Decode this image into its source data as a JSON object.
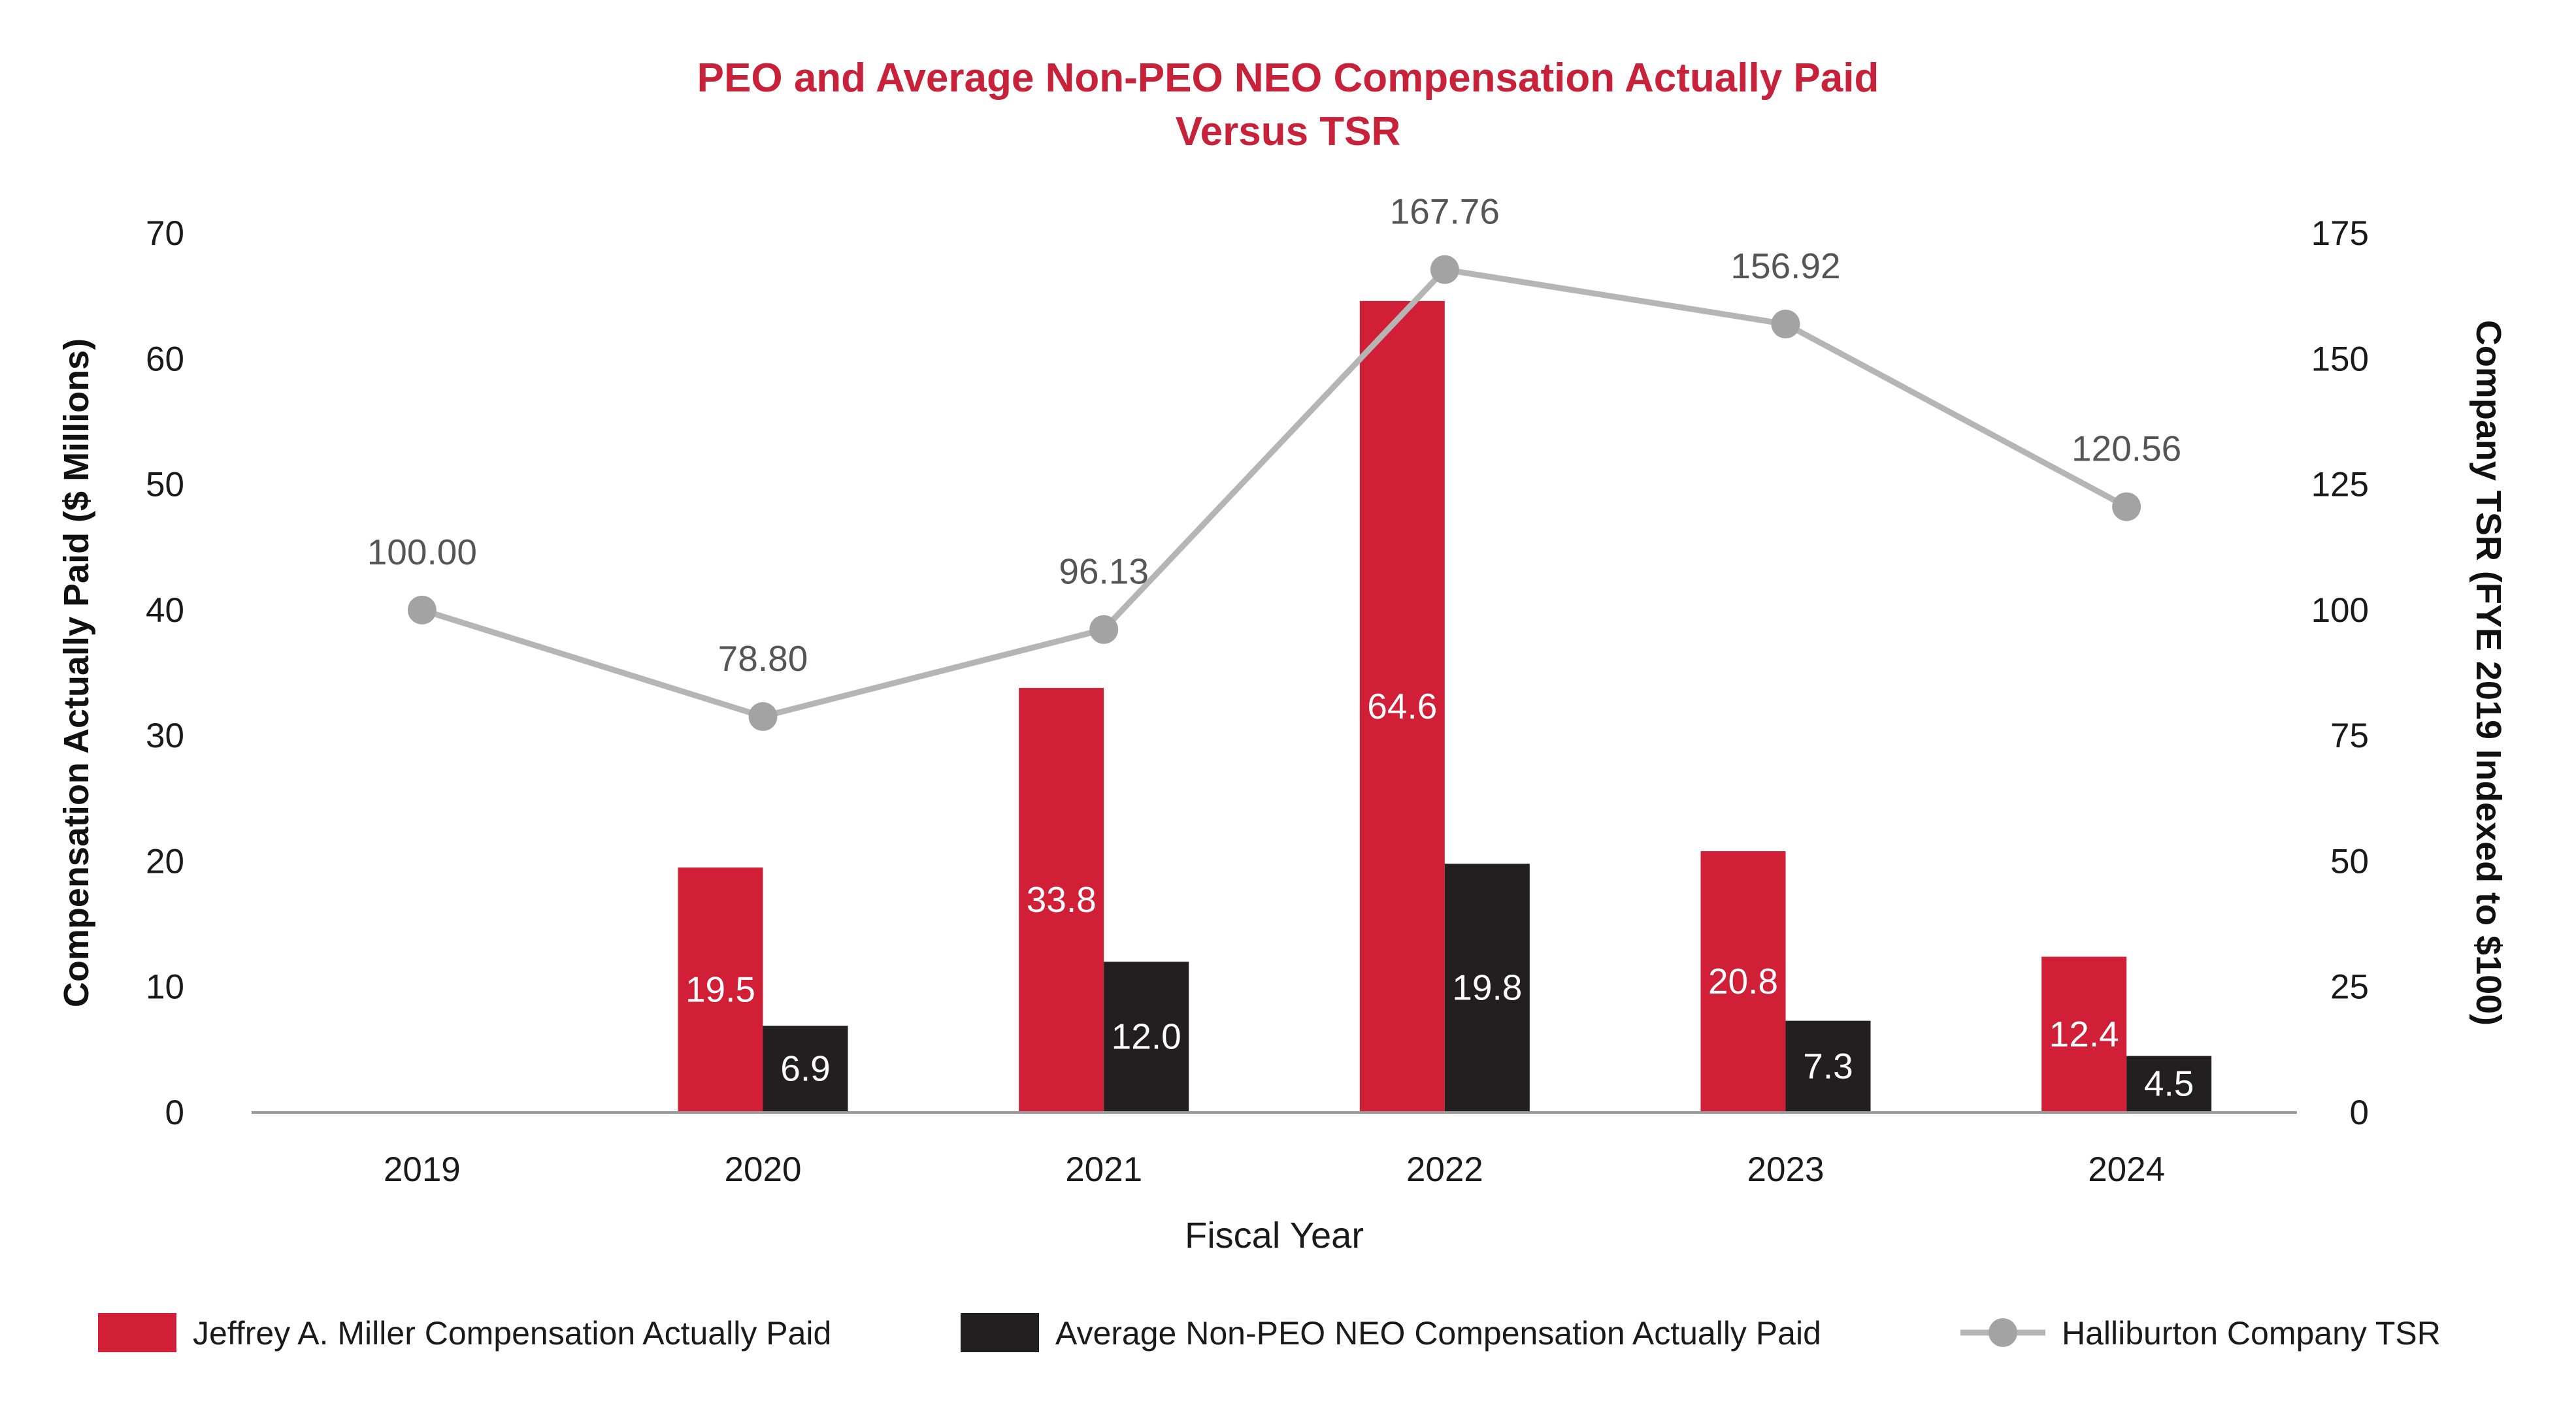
{
  "colors": {
    "title": "#c8213a",
    "peo_bar": "#d01f37",
    "neo_bar": "#231f20",
    "tsr_line": "#b5b5b5",
    "tsr_marker": "#a3a3a3",
    "axis": "#9a9a9a"
  },
  "chart_data": {
    "type": "bar",
    "title_line1": "PEO and Average Non-PEO NEO Compensation Actually Paid",
    "title_line2": "Versus TSR",
    "xlabel": "Fiscal Year",
    "ylabel_left": "Compensation Actually Paid ($ Millions)",
    "ylabel_right": "Company TSR (FYE 2019 Indexed to $100)",
    "categories": [
      "2019",
      "2020",
      "2021",
      "2022",
      "2023",
      "2024"
    ],
    "y_left": {
      "min": 0,
      "max": 70,
      "ticks": [
        "0",
        "10",
        "20",
        "30",
        "40",
        "50",
        "60",
        "70"
      ]
    },
    "y_right": {
      "min": 0,
      "max": 175,
      "ticks": [
        "0",
        "25",
        "50",
        "75",
        "100",
        "125",
        "150",
        "175"
      ]
    },
    "series": [
      {
        "name": "Jeffrey A. Miller Compensation Actually Paid",
        "kind": "bar",
        "axis": "left",
        "values": [
          null,
          19.5,
          33.8,
          64.6,
          20.8,
          12.4
        ],
        "labels": [
          "",
          "19.5",
          "33.8",
          "64.6",
          "20.8",
          "12.4"
        ]
      },
      {
        "name": "Average Non-PEO NEO Compensation Actually Paid",
        "kind": "bar",
        "axis": "left",
        "values": [
          null,
          6.9,
          12.0,
          19.8,
          7.3,
          4.5
        ],
        "labels": [
          "",
          "6.9",
          "12.0",
          "19.8",
          "7.3",
          "4.5"
        ]
      },
      {
        "name": "Halliburton Company TSR",
        "kind": "line",
        "axis": "right",
        "values": [
          100.0,
          78.8,
          96.13,
          167.76,
          156.92,
          120.56
        ],
        "labels": [
          "100.00",
          "78.80",
          "96.13",
          "167.76",
          "156.92",
          "120.56"
        ]
      }
    ],
    "legend": [
      {
        "label": "Jeffrey A. Miller Compensation Actually Paid",
        "marker": "red-square"
      },
      {
        "label": "Average Non-PEO NEO Compensation Actually Paid",
        "marker": "black-square"
      },
      {
        "label": "Halliburton Company TSR",
        "marker": "gray-line-dot"
      }
    ],
    "legend_position": "bottom",
    "grid": false
  }
}
